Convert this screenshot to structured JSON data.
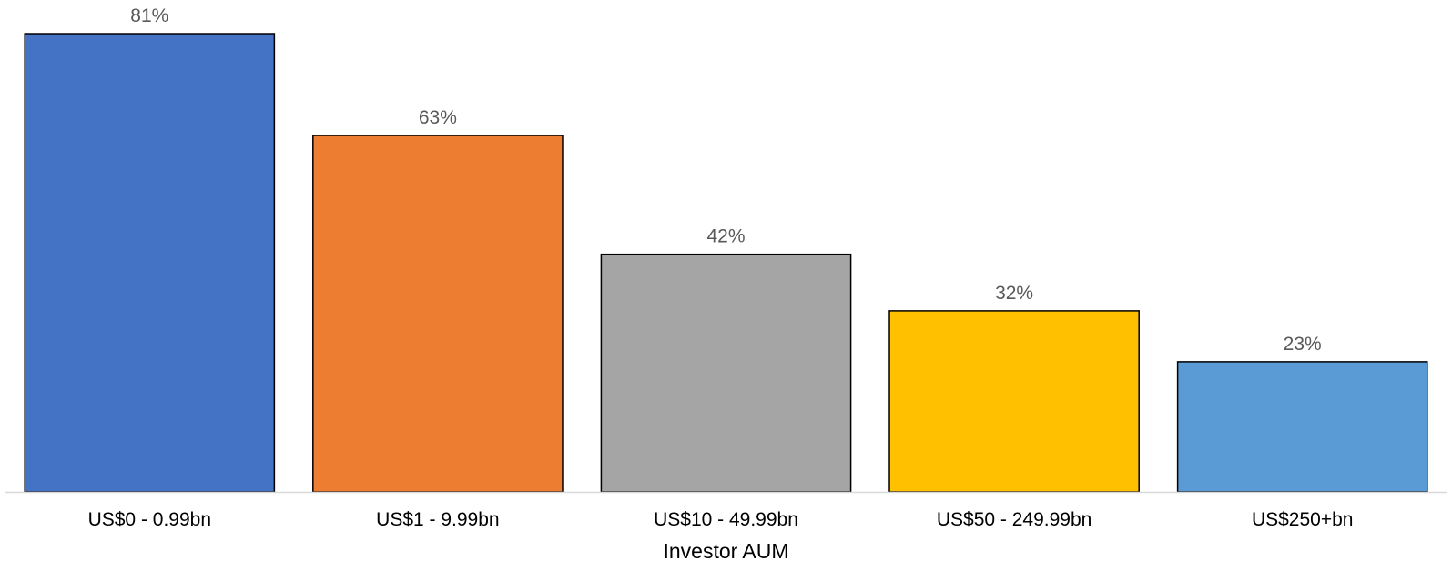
{
  "chart_data": {
    "type": "bar",
    "title": "",
    "xlabel": "Investor AUM",
    "ylabel": "",
    "categories": [
      "US$0 - 0.99bn",
      "US$1 - 9.99bn",
      "US$10 - 49.99bn",
      "US$50 - 249.99bn",
      "US$250+bn"
    ],
    "values": [
      81,
      63,
      42,
      32,
      23
    ],
    "data_labels": [
      "81%",
      "63%",
      "42%",
      "32%",
      "23%"
    ],
    "unit": "%",
    "ylim": [
      0,
      81
    ],
    "grid": false,
    "legend": "none",
    "colors": [
      "#4472C4",
      "#ED7D31",
      "#A5A5A5",
      "#FFC000",
      "#5B9BD5"
    ],
    "bar_outline_color": "#000000",
    "axis_line_color": "#D9D9D9"
  }
}
